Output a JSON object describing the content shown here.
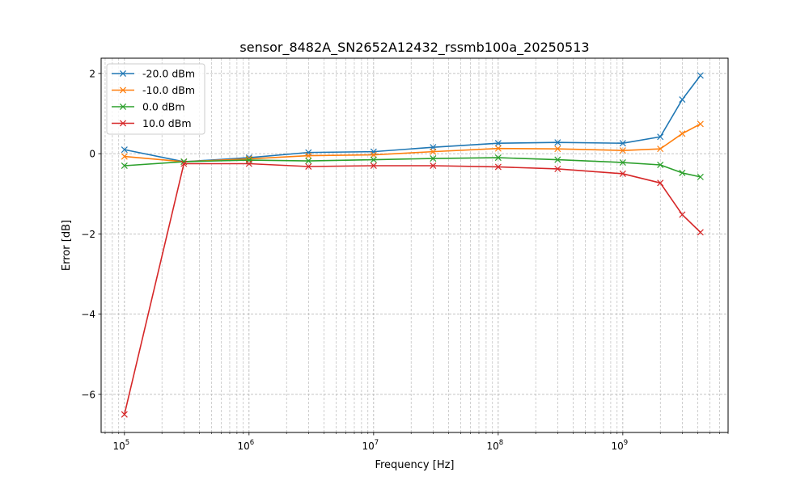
{
  "chart_data": {
    "type": "line",
    "title": "sensor_8482A_SN2652A12432_rssmb100a_20250513",
    "xlabel": "Frequency [Hz]",
    "ylabel": "Error [dB]",
    "xscale": "log",
    "xlim": [
      65000,
      7000000000
    ],
    "ylim": [
      -6.95,
      2.38
    ],
    "xticks": [
      {
        "value": 100000,
        "base": "10",
        "exp": "5"
      },
      {
        "value": 1000000,
        "base": "10",
        "exp": "6"
      },
      {
        "value": 10000000,
        "base": "10",
        "exp": "7"
      },
      {
        "value": 100000000,
        "base": "10",
        "exp": "8"
      },
      {
        "value": 1000000000,
        "base": "10",
        "exp": "9"
      }
    ],
    "yticks": [
      {
        "value": 2,
        "label": "2"
      },
      {
        "value": 0,
        "label": "0"
      },
      {
        "value": -2,
        "label": "−2"
      },
      {
        "value": -4,
        "label": "−4"
      },
      {
        "value": -6,
        "label": "−6"
      }
    ],
    "grid": true,
    "grid_minor": true,
    "legend_position": "top-left",
    "marker": "x",
    "x": [
      100000,
      300000,
      1000000,
      3000000,
      10000000,
      30000000,
      100000000,
      300000000,
      1000000000,
      2000000000,
      3000000000,
      4200000000
    ],
    "series": [
      {
        "name": "-20.0 dBm",
        "color": "#1f77b4",
        "values": [
          0.1,
          -0.2,
          -0.1,
          0.03,
          0.05,
          0.16,
          0.26,
          0.28,
          0.26,
          0.42,
          1.35,
          1.95
        ]
      },
      {
        "name": "-10.0 dBm",
        "color": "#ff7f0e",
        "values": [
          -0.07,
          -0.2,
          -0.13,
          -0.05,
          -0.03,
          0.05,
          0.13,
          0.12,
          0.08,
          0.12,
          0.5,
          0.74
        ]
      },
      {
        "name": "0.0 dBm",
        "color": "#2ca02c",
        "values": [
          -0.3,
          -0.2,
          -0.16,
          -0.18,
          -0.15,
          -0.12,
          -0.1,
          -0.15,
          -0.22,
          -0.28,
          -0.48,
          -0.58
        ]
      },
      {
        "name": "10.0 dBm",
        "color": "#d62728",
        "values": [
          -6.5,
          -0.25,
          -0.25,
          -0.32,
          -0.3,
          -0.3,
          -0.33,
          -0.38,
          -0.5,
          -0.73,
          -1.52,
          -1.96
        ]
      }
    ]
  }
}
